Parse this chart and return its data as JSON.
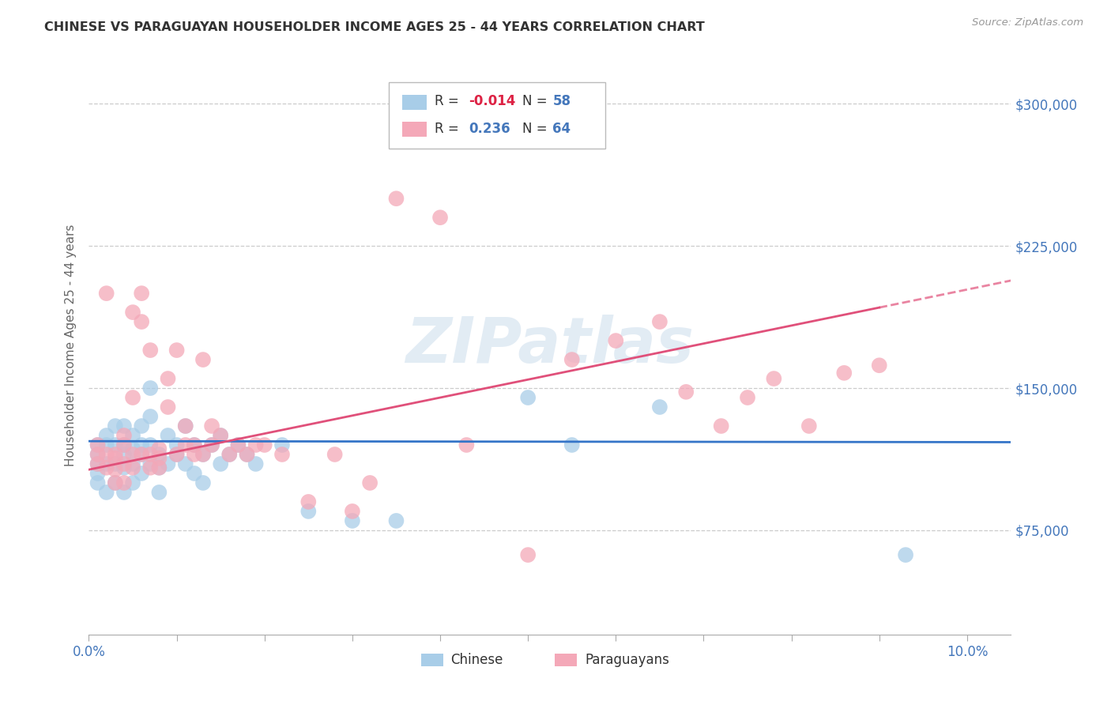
{
  "title": "CHINESE VS PARAGUAYAN HOUSEHOLDER INCOME AGES 25 - 44 YEARS CORRELATION CHART",
  "source": "Source: ZipAtlas.com",
  "ylabel": "Householder Income Ages 25 - 44 years",
  "xlim": [
    0.0,
    0.105
  ],
  "ylim": [
    20000,
    325000
  ],
  "xticks": [
    0.0,
    0.01,
    0.02,
    0.03,
    0.04,
    0.05,
    0.06,
    0.07,
    0.08,
    0.09,
    0.1
  ],
  "xticklabels": [
    "0.0%",
    "",
    "",
    "",
    "",
    "",
    "",
    "",
    "",
    "",
    "10.0%"
  ],
  "ytick_positions": [
    75000,
    150000,
    225000,
    300000
  ],
  "ytick_labels": [
    "$75,000",
    "$150,000",
    "$225,000",
    "$300,000"
  ],
  "chinese_color": "#A8CDE8",
  "paraguayan_color": "#F4A8B8",
  "trend_chinese_color": "#3575C8",
  "trend_paraguayan_color": "#E0507A",
  "watermark": "ZIPatlas",
  "chinese_x": [
    0.001,
    0.001,
    0.001,
    0.001,
    0.001,
    0.002,
    0.002,
    0.002,
    0.002,
    0.003,
    0.003,
    0.003,
    0.003,
    0.004,
    0.004,
    0.004,
    0.004,
    0.004,
    0.005,
    0.005,
    0.005,
    0.005,
    0.006,
    0.006,
    0.006,
    0.006,
    0.007,
    0.007,
    0.007,
    0.007,
    0.008,
    0.008,
    0.008,
    0.009,
    0.009,
    0.01,
    0.01,
    0.011,
    0.011,
    0.012,
    0.012,
    0.013,
    0.013,
    0.014,
    0.015,
    0.015,
    0.016,
    0.017,
    0.018,
    0.019,
    0.022,
    0.025,
    0.03,
    0.035,
    0.05,
    0.055,
    0.065,
    0.093
  ],
  "chinese_y": [
    120000,
    115000,
    110000,
    105000,
    100000,
    125000,
    120000,
    110000,
    95000,
    130000,
    120000,
    110000,
    100000,
    130000,
    120000,
    115000,
    108000,
    95000,
    125000,
    118000,
    110000,
    100000,
    130000,
    120000,
    115000,
    105000,
    150000,
    135000,
    120000,
    110000,
    115000,
    108000,
    95000,
    125000,
    110000,
    120000,
    115000,
    130000,
    110000,
    120000,
    105000,
    115000,
    100000,
    120000,
    125000,
    110000,
    115000,
    120000,
    115000,
    110000,
    120000,
    85000,
    80000,
    80000,
    145000,
    120000,
    140000,
    62000
  ],
  "paraguayan_x": [
    0.001,
    0.001,
    0.001,
    0.002,
    0.002,
    0.002,
    0.003,
    0.003,
    0.003,
    0.003,
    0.004,
    0.004,
    0.004,
    0.004,
    0.005,
    0.005,
    0.005,
    0.005,
    0.006,
    0.006,
    0.006,
    0.007,
    0.007,
    0.007,
    0.008,
    0.008,
    0.008,
    0.009,
    0.009,
    0.01,
    0.01,
    0.011,
    0.011,
    0.012,
    0.012,
    0.013,
    0.013,
    0.014,
    0.014,
    0.015,
    0.016,
    0.017,
    0.018,
    0.019,
    0.02,
    0.022,
    0.025,
    0.028,
    0.03,
    0.032,
    0.035,
    0.04,
    0.043,
    0.05,
    0.055,
    0.06,
    0.065,
    0.068,
    0.072,
    0.075,
    0.078,
    0.082,
    0.086,
    0.09
  ],
  "paraguayan_y": [
    120000,
    115000,
    110000,
    200000,
    115000,
    108000,
    115000,
    113000,
    107000,
    100000,
    125000,
    120000,
    110000,
    100000,
    190000,
    145000,
    115000,
    108000,
    200000,
    185000,
    115000,
    170000,
    115000,
    108000,
    118000,
    113000,
    108000,
    155000,
    140000,
    170000,
    115000,
    130000,
    120000,
    120000,
    115000,
    165000,
    115000,
    130000,
    120000,
    125000,
    115000,
    120000,
    115000,
    120000,
    120000,
    115000,
    90000,
    115000,
    85000,
    100000,
    250000,
    240000,
    120000,
    62000,
    165000,
    175000,
    185000,
    148000,
    130000,
    145000,
    155000,
    130000,
    158000,
    162000
  ]
}
